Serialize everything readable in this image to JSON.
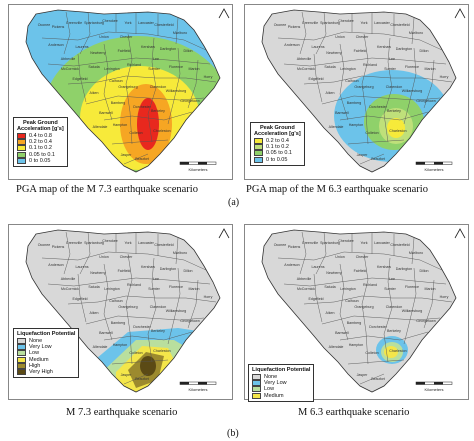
{
  "panels": [
    {
      "id": "a-left",
      "caption": "PGA map of the M 7.3 earthquake scenario",
      "legend": {
        "title_lines": [
          "Peak Ground",
          "Acceleration [g's]"
        ],
        "items": [
          {
            "label": "0.4  to 0.8",
            "color": "#e8281e"
          },
          {
            "label": "0.2  to 0.4",
            "color": "#f6a623"
          },
          {
            "label": "0.1  to 0.2",
            "color": "#f7ea3a"
          },
          {
            "label": "0.05 to 0.1",
            "color": "#8fd16a"
          },
          {
            "label": "0    to 0.05",
            "color": "#6cc3ea"
          }
        ]
      },
      "scale_unit": "Kilometers"
    },
    {
      "id": "a-right",
      "caption": "PGA map of the M 6.3 earthquake scenario",
      "legend": {
        "title_lines": [
          "Peak Ground",
          "Acceleration [g's]"
        ],
        "items": [
          {
            "label": "0.2  to 0.4",
            "color": "#f7ea3a"
          },
          {
            "label": "0.1  to 0.2",
            "color": "#bfe07a"
          },
          {
            "label": "0.05 to 0.1",
            "color": "#8fd16a"
          },
          {
            "label": "0    to 0.05",
            "color": "#6cc3ea"
          }
        ]
      },
      "scale_unit": "Kilometers"
    },
    {
      "id": "b-left",
      "caption": "M 7.3 earthquake scenario",
      "legend": {
        "title_lines": [
          "Liquefaction Potential"
        ],
        "items": [
          {
            "label": "None",
            "color": "#d8d8d8"
          },
          {
            "label": "Very Low",
            "color": "#6cc3ea"
          },
          {
            "label": "Low",
            "color": "#b9df9e"
          },
          {
            "label": "Medium",
            "color": "#f4e64a"
          },
          {
            "label": "High",
            "color": "#9c8a2e"
          },
          {
            "label": "Very High",
            "color": "#5b4a15"
          }
        ]
      },
      "scale_unit": "Kilometers"
    },
    {
      "id": "b-right",
      "caption": "M 6.3 earthquake scenario",
      "legend": {
        "title_lines": [
          "Liquefaction Potential"
        ],
        "items": [
          {
            "label": "None",
            "color": "#d8d8d8"
          },
          {
            "label": "Very Low",
            "color": "#6cc3ea"
          },
          {
            "label": "Low",
            "color": "#b9df9e"
          },
          {
            "label": "Medium",
            "color": "#f4e64a"
          }
        ]
      },
      "scale_unit": "Kilometers"
    }
  ],
  "sublabels": {
    "a": "(a)",
    "b": "(b)"
  },
  "county_labels": [
    "Oconee",
    "Pickens",
    "Greenville",
    "Spartanburg",
    "Cherokee",
    "York",
    "Lancaster",
    "Chesterfield",
    "Marlboro",
    "Union",
    "Chester",
    "Laurens",
    "Anderson",
    "Abbeville",
    "Newberry",
    "Fairfield",
    "Kershaw",
    "Darlington",
    "Dillon",
    "Richland",
    "Lexington",
    "Saluda",
    "Edgefield",
    "Aiken",
    "Orangeburg",
    "Calhoun",
    "Sumter",
    "Florence",
    "Marion",
    "Horry",
    "Williamsburg",
    "Clarendon",
    "Georgetown",
    "Berkeley",
    "Dorchester",
    "Bamberg",
    "Barnwell",
    "Allendale",
    "Hampton",
    "Colleton",
    "Charleston",
    "Jasper",
    "Beaufort",
    "McCormick",
    "Lee"
  ],
  "colors": {
    "county_fill": "#d8d8d8",
    "county_stroke": "#555555",
    "state_stroke": "#333333"
  }
}
